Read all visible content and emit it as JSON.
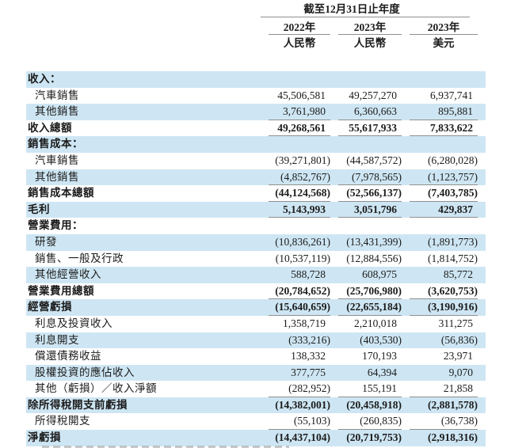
{
  "document": {
    "period_header": "截至12月31日止年度",
    "columns": [
      {
        "year": "2022年",
        "currency": "人民幣"
      },
      {
        "year": "2023年",
        "currency": "人民幣"
      },
      {
        "year": "2023年",
        "currency": "美元"
      }
    ],
    "rows": [
      {
        "label": "收入：",
        "values": [
          "",
          "",
          ""
        ],
        "section": true
      },
      {
        "label": "汽車銷售",
        "values": [
          "45,506,581",
          "49,257,270",
          "6,937,741"
        ],
        "indent": true
      },
      {
        "label": "其他銷售",
        "values": [
          "3,761,980",
          "6,360,663",
          "895,881"
        ],
        "indent": true,
        "underline": true
      },
      {
        "label": "收入總額",
        "values": [
          "49,268,561",
          "55,617,933",
          "7,833,622"
        ],
        "bold": true,
        "underline": true
      },
      {
        "label": "銷售成本：",
        "values": [
          "",
          "",
          ""
        ],
        "section": true
      },
      {
        "label": "汽車銷售",
        "values": [
          "(39,271,801)",
          "(44,587,572)",
          "(6,280,028)"
        ],
        "indent": true
      },
      {
        "label": "其他銷售",
        "values": [
          "(4,852,767)",
          "(7,978,565)",
          "(1,123,757)"
        ],
        "indent": true,
        "underline": true
      },
      {
        "label": "銷售成本總額",
        "values": [
          "(44,124,568)",
          "(52,566,137)",
          "(7,403,785)"
        ],
        "bold": true,
        "underline": true
      },
      {
        "label": "毛利",
        "values": [
          "5,143,993",
          "3,051,796",
          "429,837"
        ],
        "bold": true,
        "underline": true
      },
      {
        "label": "營業費用：",
        "values": [
          "",
          "",
          ""
        ],
        "section": true
      },
      {
        "label": "研發",
        "values": [
          "(10,836,261)",
          "(13,431,399)",
          "(1,891,773)"
        ],
        "indent": true
      },
      {
        "label": "銷售、一般及行政",
        "values": [
          "(10,537,119)",
          "(12,884,556)",
          "(1,814,752)"
        ],
        "indent": true
      },
      {
        "label": "其他經營收入",
        "values": [
          "588,728",
          "608,975",
          "85,772"
        ],
        "indent": true
      },
      {
        "label": "營業費用總額",
        "values": [
          "(20,784,652)",
          "(25,706,980)",
          "(3,620,753)"
        ],
        "bold": true,
        "underline": true
      },
      {
        "label": "經營虧損",
        "values": [
          "(15,640,659)",
          "(22,655,184)",
          "(3,190,916)"
        ],
        "bold": true,
        "underline": true
      },
      {
        "label": "利息及投資收入",
        "values": [
          "1,358,719",
          "2,210,018",
          "311,275"
        ],
        "indent": true
      },
      {
        "label": "利息開支",
        "values": [
          "(333,216)",
          "(403,530)",
          "(56,836)"
        ],
        "indent": true
      },
      {
        "label": "償還債務收益",
        "values": [
          "138,332",
          "170,193",
          "23,971"
        ],
        "indent": true
      },
      {
        "label": "股權投資的應佔收入",
        "values": [
          "377,775",
          "64,394",
          "9,070"
        ],
        "indent": true
      },
      {
        "label": "其他（虧損）／收入淨額",
        "values": [
          "(282,952)",
          "155,191",
          "21,858"
        ],
        "indent": true,
        "underline": true
      },
      {
        "label": "除所得稅開支前虧損",
        "values": [
          "(14,382,001)",
          "(20,458,918)",
          "(2,881,578)"
        ],
        "bold": true
      },
      {
        "label": "所得稅開支",
        "values": [
          "(55,103)",
          "(260,835)",
          "(36,738)"
        ],
        "indent": true,
        "underline": true
      },
      {
        "label": "淨虧損",
        "values": [
          "(14,437,104)",
          "(20,719,753)",
          "(2,918,316)"
        ],
        "bold": true
      }
    ]
  }
}
